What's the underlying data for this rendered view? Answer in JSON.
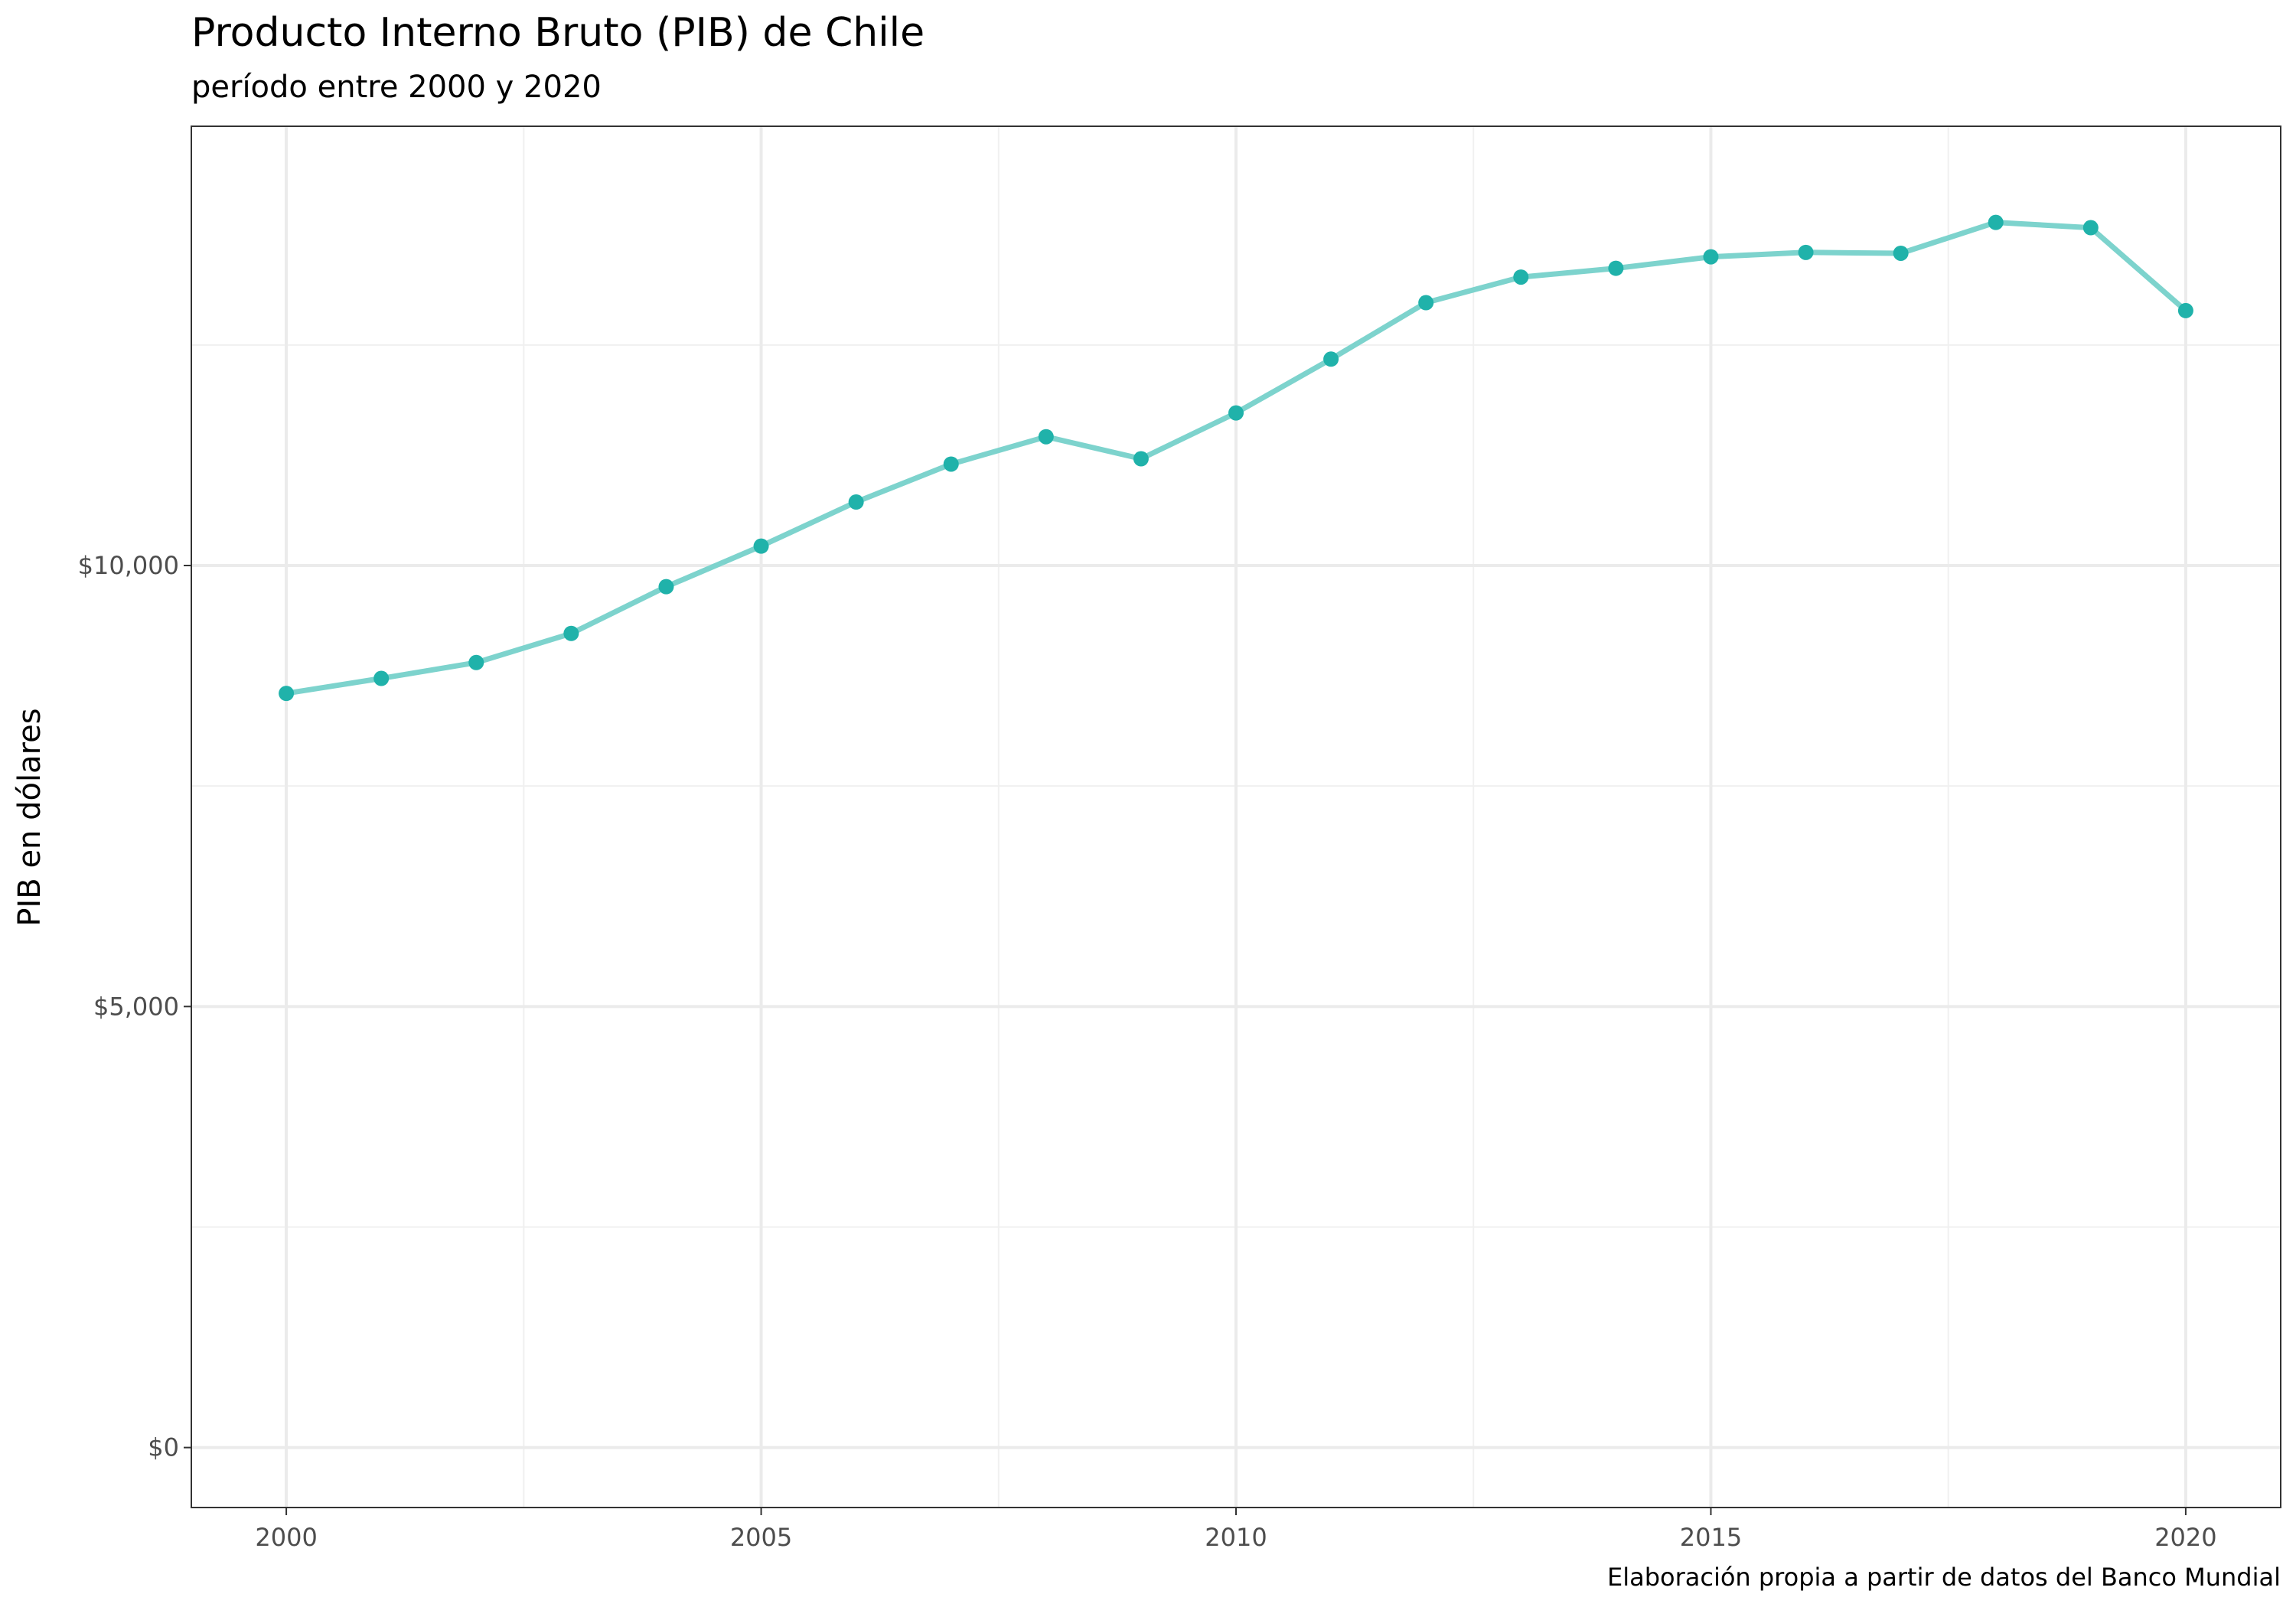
{
  "chart_data": {
    "type": "line",
    "title": "Producto Interno Bruto (PIB) de Chile",
    "subtitle": "período entre 2000 y 2020",
    "xlabel": "",
    "ylabel": "PIB en dólares",
    "caption": "Elaboración propia a partir de datos del Banco Mundial",
    "xlim": [
      1999,
      2021
    ],
    "ylim": [
      -680,
      14980
    ],
    "x_ticks": [
      2000,
      2005,
      2010,
      2015,
      2020
    ],
    "x_tick_labels": [
      "2000",
      "2005",
      "2010",
      "2015",
      "2020"
    ],
    "y_ticks": [
      0,
      5000,
      10000
    ],
    "y_tick_labels": [
      "$0",
      "$5,000",
      "$10,000"
    ],
    "grid": true,
    "line_color": "#7dd3cd",
    "point_color": "#20b2aa",
    "series": [
      {
        "x": [
          2000,
          2001,
          2002,
          2003,
          2004,
          2005,
          2006,
          2007,
          2008,
          2009,
          2010,
          2011,
          2012,
          2013,
          2014,
          2015,
          2016,
          2017,
          2018,
          2019,
          2020
        ],
        "values": [
          8550,
          8720,
          8900,
          9230,
          9760,
          10220,
          10720,
          11150,
          11460,
          11210,
          11730,
          12340,
          12980,
          13270,
          13370,
          13500,
          13550,
          13540,
          13890,
          13830,
          12890
        ]
      }
    ]
  }
}
